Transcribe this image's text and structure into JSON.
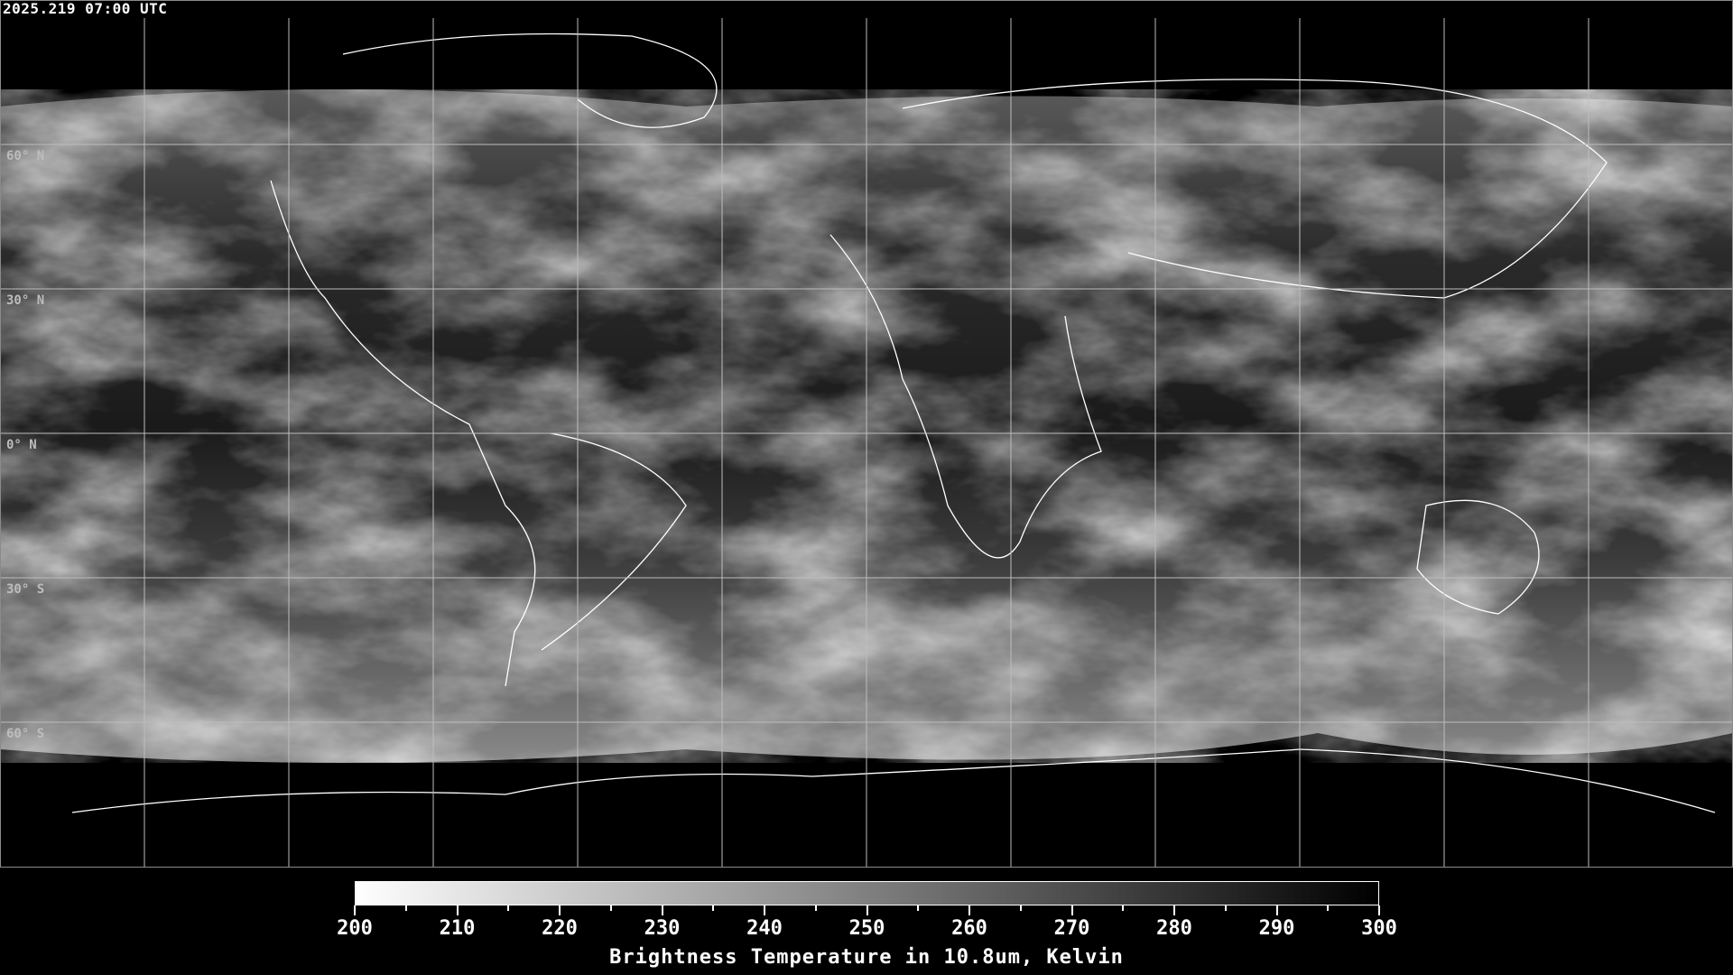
{
  "timestamp": "2025.219 07:00 UTC",
  "map": {
    "projection": "equirectangular",
    "graticule_longitudes": [
      -150,
      -120,
      -90,
      -60,
      -30,
      0,
      30,
      60,
      90,
      120,
      150
    ],
    "graticule_latitudes": [
      60,
      30,
      0,
      -30,
      -60
    ],
    "lat_labels": [
      "60° N",
      "30° N",
      "0° N",
      "30° S",
      "60° S"
    ],
    "colormap": "grayscale, white = cold, black = warm"
  },
  "colorbar": {
    "min": 200,
    "max": 300,
    "min_color": "#ffffff",
    "max_color": "#000000",
    "tick_labels": [
      "200",
      "210",
      "220",
      "230",
      "240",
      "250",
      "260",
      "270",
      "280",
      "290",
      "300"
    ],
    "title": "Brightness Temperature in 10.8um, Kelvin"
  }
}
